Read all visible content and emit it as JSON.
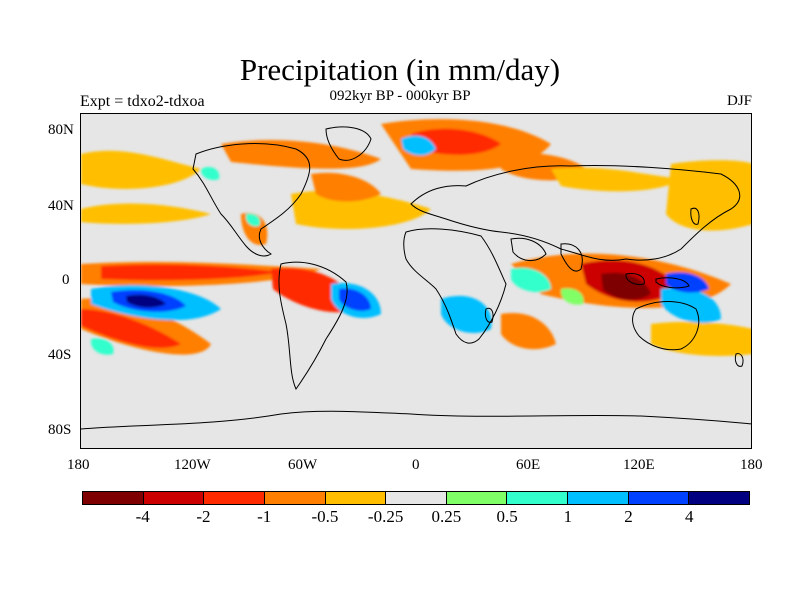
{
  "title": "Precipitation (in mm/day)",
  "subtitle": "092kyr BP - 000kyr BP",
  "left_label": "Expt = tdxo2-tdxoa",
  "right_label": "DJF",
  "lat_ticks": [
    "80N",
    "40N",
    "0",
    "40S",
    "80S"
  ],
  "lon_ticks": [
    "180",
    "120W",
    "60W",
    "0",
    "60E",
    "120E",
    "180"
  ],
  "colorbar": {
    "colors": [
      "#7f0000",
      "#cc0000",
      "#ff2a00",
      "#ff7f00",
      "#ffbf00",
      "#e6e6e6",
      "#80ff66",
      "#33ffcc",
      "#00bfff",
      "#0040ff",
      "#000080"
    ],
    "labels": [
      "-4",
      "-2",
      "-1",
      "-0.5",
      "-0.25",
      "0.25",
      "0.5",
      "1",
      "2",
      "4"
    ]
  },
  "colors": {
    "ocean_land_neutral": "#e6e6e6",
    "coastline": "#000000"
  }
}
